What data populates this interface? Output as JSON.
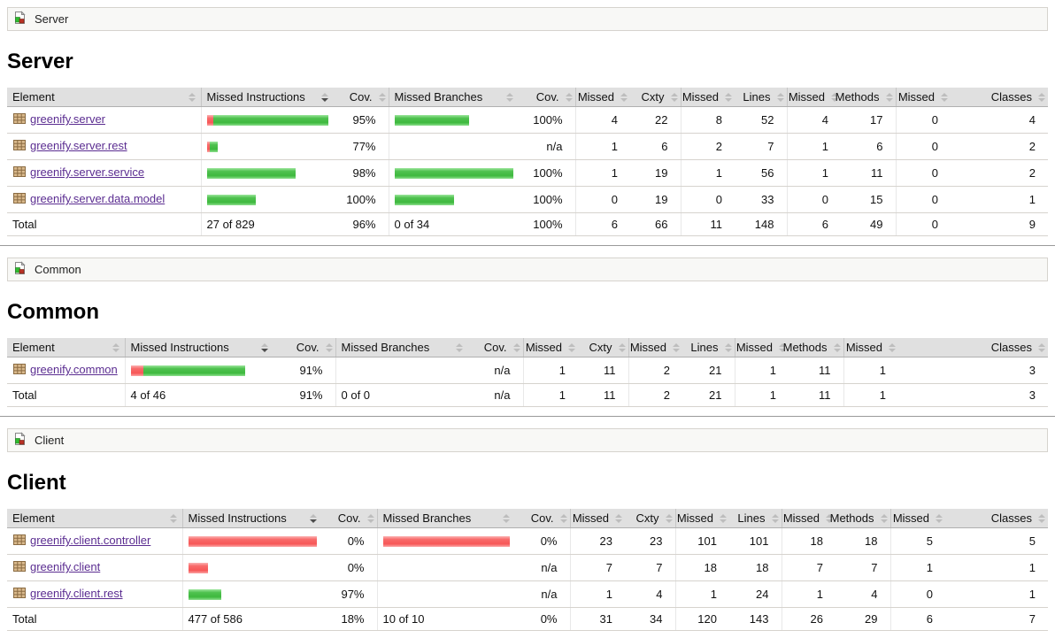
{
  "colors": {
    "bar_green": "#4fc14f",
    "bar_red": "#f86a6a",
    "link_purple": "#5b2d91",
    "header_bg": "#e0e0e0"
  },
  "columns": [
    {
      "label": "Element",
      "sorted": null
    },
    {
      "label": "Missed Instructions",
      "sorted": "desc"
    },
    {
      "label": "Cov.",
      "sorted": null
    },
    {
      "label": "Missed Branches",
      "sorted": null
    },
    {
      "label": "Cov.",
      "sorted": null
    },
    {
      "label": "Missed",
      "sorted": null
    },
    {
      "label": "Cxty",
      "sorted": null
    },
    {
      "label": "Missed",
      "sorted": null
    },
    {
      "label": "Lines",
      "sorted": null
    },
    {
      "label": "Missed",
      "sorted": null
    },
    {
      "label": "Methods",
      "sorted": null
    },
    {
      "label": "Missed",
      "sorted": null
    },
    {
      "label": "Classes",
      "sorted": null
    }
  ],
  "total_label": "Total",
  "sections": [
    {
      "breadcrumb": "Server",
      "heading": "Server",
      "rows": [
        {
          "name": "greenify.server",
          "instr_bar": {
            "red": 7,
            "green": 130
          },
          "instr_cov": "95%",
          "branch_bar": {
            "red": 0,
            "green": 84
          },
          "branch_cov": "100%",
          "cells": [
            "4",
            "22",
            "8",
            "52",
            "4",
            "17",
            "0",
            "4"
          ]
        },
        {
          "name": "greenify.server.rest",
          "instr_bar": {
            "red": 3,
            "green": 9
          },
          "instr_cov": "77%",
          "branch_bar": null,
          "branch_cov": "n/a",
          "cells": [
            "1",
            "6",
            "2",
            "7",
            "1",
            "6",
            "0",
            "2"
          ]
        },
        {
          "name": "greenify.server.service",
          "instr_bar": {
            "red": 0,
            "green": 100
          },
          "instr_cov": "98%",
          "branch_bar": {
            "red": 0,
            "green": 135
          },
          "branch_cov": "100%",
          "cells": [
            "1",
            "19",
            "1",
            "56",
            "1",
            "11",
            "0",
            "2"
          ]
        },
        {
          "name": "greenify.server.data.model",
          "instr_bar": {
            "red": 0,
            "green": 55
          },
          "instr_cov": "100%",
          "branch_bar": {
            "red": 0,
            "green": 67
          },
          "branch_cov": "100%",
          "cells": [
            "0",
            "19",
            "0",
            "33",
            "0",
            "15",
            "0",
            "1"
          ]
        }
      ],
      "total": {
        "instr": "27 of 829",
        "instr_cov": "96%",
        "branch": "0 of 34",
        "branch_cov": "100%",
        "cells": [
          "6",
          "66",
          "11",
          "148",
          "6",
          "49",
          "0",
          "9"
        ]
      }
    },
    {
      "breadcrumb": "Common",
      "heading": "Common",
      "rows": [
        {
          "name": "greenify.common",
          "instr_bar": {
            "red": 14,
            "green": 115
          },
          "instr_cov": "91%",
          "branch_bar": null,
          "branch_cov": "n/a",
          "cells": [
            "1",
            "11",
            "2",
            "21",
            "1",
            "11",
            "1",
            "3"
          ]
        }
      ],
      "total": {
        "instr": "4 of 46",
        "instr_cov": "91%",
        "branch": "0 of 0",
        "branch_cov": "n/a",
        "cells": [
          "1",
          "11",
          "2",
          "21",
          "1",
          "11",
          "1",
          "3"
        ]
      }
    },
    {
      "breadcrumb": "Client",
      "heading": "Client",
      "rows": [
        {
          "name": "greenify.client.controller",
          "instr_bar": {
            "red": 145,
            "green": 0
          },
          "instr_cov": "0%",
          "branch_bar": {
            "red": 143,
            "green": 0
          },
          "branch_cov": "0%",
          "cells": [
            "23",
            "23",
            "101",
            "101",
            "18",
            "18",
            "5",
            "5"
          ]
        },
        {
          "name": "greenify.client",
          "instr_bar": {
            "red": 22,
            "green": 0
          },
          "instr_cov": "0%",
          "branch_bar": null,
          "branch_cov": "n/a",
          "cells": [
            "7",
            "7",
            "18",
            "18",
            "7",
            "7",
            "1",
            "1"
          ]
        },
        {
          "name": "greenify.client.rest",
          "instr_bar": {
            "red": 0,
            "green": 37
          },
          "instr_cov": "97%",
          "branch_bar": null,
          "branch_cov": "n/a",
          "cells": [
            "1",
            "4",
            "1",
            "24",
            "1",
            "4",
            "0",
            "1"
          ]
        }
      ],
      "total": {
        "instr": "477 of 586",
        "instr_cov": "18%",
        "branch": "10 of 10",
        "branch_cov": "0%",
        "cells": [
          "31",
          "34",
          "120",
          "143",
          "26",
          "29",
          "6",
          "7"
        ]
      }
    }
  ]
}
